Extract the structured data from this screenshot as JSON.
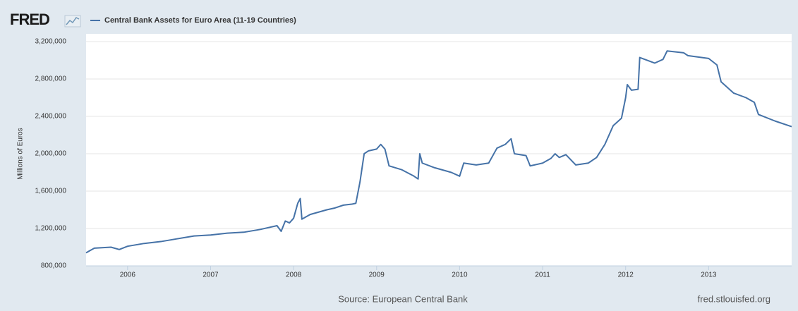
{
  "chart_data": {
    "type": "line",
    "logo": "FRED",
    "ylabel": "Millions of Euros",
    "source": "Source: European Central Bank",
    "site": "fred.stlouisfed.org",
    "grid": true,
    "xlim": [
      2005.5,
      2014.0
    ],
    "xticks": [
      2006,
      2007,
      2008,
      2009,
      2010,
      2011,
      2012,
      2013
    ],
    "ylim": [
      800000,
      3200000
    ],
    "yticks": [
      {
        "value": 800000,
        "label": "800,000"
      },
      {
        "value": 1200000,
        "label": "1,200,000"
      },
      {
        "value": 1600000,
        "label": "1,600,000"
      },
      {
        "value": 2000000,
        "label": "2,000,000"
      },
      {
        "value": 2400000,
        "label": "2,400,000"
      },
      {
        "value": 2800000,
        "label": "2,800,000"
      },
      {
        "value": 3200000,
        "label": "3,200,000"
      }
    ],
    "x": [
      2005.5,
      2005.6,
      2005.8,
      2005.9,
      2006.0,
      2006.2,
      2006.4,
      2006.6,
      2006.8,
      2007.0,
      2007.2,
      2007.4,
      2007.6,
      2007.8,
      2007.85,
      2007.9,
      2007.95,
      2008.0,
      2008.05,
      2008.08,
      2008.1,
      2008.2,
      2008.4,
      2008.5,
      2008.6,
      2008.7,
      2008.75,
      2008.8,
      2008.85,
      2008.9,
      2009.0,
      2009.05,
      2009.1,
      2009.15,
      2009.3,
      2009.45,
      2009.5,
      2009.52,
      2009.55,
      2009.7,
      2009.9,
      2010.0,
      2010.05,
      2010.2,
      2010.35,
      2010.45,
      2010.55,
      2010.62,
      2010.66,
      2010.8,
      2010.85,
      2011.0,
      2011.1,
      2011.15,
      2011.2,
      2011.28,
      2011.4,
      2011.55,
      2011.65,
      2011.75,
      2011.85,
      2011.95,
      2012.0,
      2012.02,
      2012.07,
      2012.15,
      2012.17,
      2012.35,
      2012.45,
      2012.5,
      2012.7,
      2012.75,
      2013.0,
      2013.1,
      2013.15,
      2013.3,
      2013.45,
      2013.55,
      2013.6,
      2013.8,
      2014.0
    ],
    "series": [
      {
        "name": "Central Bank Assets for Euro Area (11-19 Countries)",
        "color": "#4572a7",
        "values": [
          940000,
          990000,
          1000000,
          975000,
          1010000,
          1040000,
          1060000,
          1090000,
          1120000,
          1130000,
          1150000,
          1160000,
          1190000,
          1230000,
          1170000,
          1280000,
          1260000,
          1310000,
          1470000,
          1520000,
          1300000,
          1350000,
          1400000,
          1420000,
          1450000,
          1460000,
          1470000,
          1700000,
          2000000,
          2030000,
          2050000,
          2100000,
          2050000,
          1870000,
          1830000,
          1760000,
          1730000,
          2000000,
          1900000,
          1850000,
          1800000,
          1760000,
          1900000,
          1880000,
          1900000,
          2060000,
          2100000,
          2160000,
          2000000,
          1980000,
          1870000,
          1900000,
          1950000,
          2000000,
          1960000,
          1990000,
          1880000,
          1900000,
          1960000,
          2100000,
          2300000,
          2380000,
          2600000,
          2740000,
          2680000,
          2690000,
          3030000,
          2970000,
          3010000,
          3100000,
          3080000,
          3050000,
          3020000,
          2950000,
          2770000,
          2650000,
          2600000,
          2550000,
          2420000,
          2350000,
          2290000
        ]
      }
    ]
  }
}
